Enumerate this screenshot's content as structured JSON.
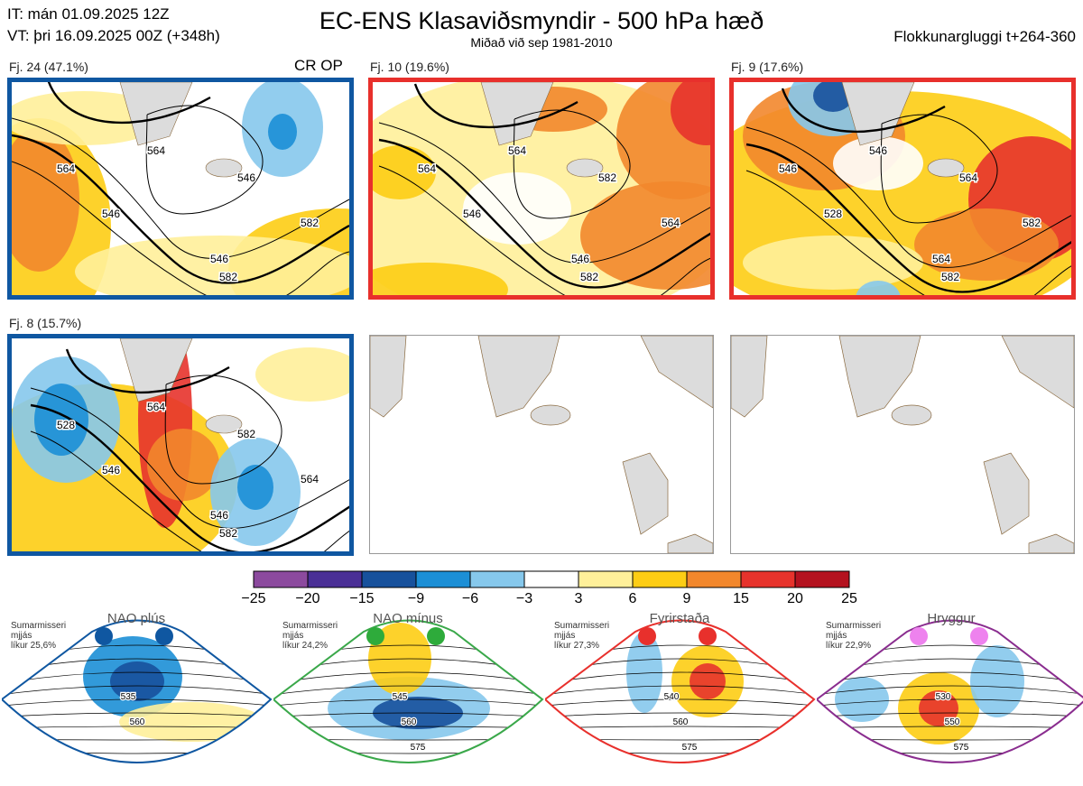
{
  "header": {
    "it": "IT: mán 01.09.2025 12Z",
    "vt": "VT: þri 16.09.2025 00Z  (+348h)",
    "title": "EC-ENS Klasaviðsmyndir - 500 hPa hæð",
    "subtitle": "Miðað við sep 1981-2010",
    "window": "Flokkunargluggi t+264-360"
  },
  "clusters": [
    {
      "label": "Fj. 24 (47.1%)",
      "border": "#0f57a1",
      "cr_op": "CR OP",
      "contours": [
        "546",
        "564",
        "546",
        "564",
        "546",
        "582",
        "582"
      ]
    },
    {
      "label": "Fj. 10 (19.6%)",
      "border": "#e8302c",
      "contours": [
        "546",
        "564",
        "546",
        "564",
        "582",
        "564",
        "582"
      ]
    },
    {
      "label": "Fj. 9 (17.6%)",
      "border": "#e8302c",
      "contours": [
        "528",
        "546",
        "564",
        "546",
        "564",
        "582",
        "582"
      ]
    },
    {
      "label": "Fj. 8 (15.7%)",
      "border": "#0f57a1",
      "contours": [
        "546",
        "528",
        "546",
        "564",
        "582",
        "564",
        "582"
      ]
    }
  ],
  "colorbar": {
    "ticks": [
      "−25",
      "−20",
      "−15",
      "−9",
      "−6",
      "−3",
      "3",
      "6",
      "9",
      "15",
      "20",
      "25"
    ],
    "colors": [
      "#8c4a9e",
      "#4a2f96",
      "#17519c",
      "#1c8fd6",
      "#86c8ec",
      "#ffffff",
      "#fff09a",
      "#fdcd14",
      "#f2872c",
      "#e7332c",
      "#b4121f"
    ]
  },
  "regimes": [
    {
      "name": "NAO plús",
      "season": "Sumarmisseri",
      "smoothing": "mjjás",
      "prob": "líkur 25,6%",
      "color": "#0f57a1",
      "dot": "#0f57a1",
      "contours": [
        "535",
        "560"
      ]
    },
    {
      "name": "NAO mínus",
      "season": "Sumarmisseri",
      "smoothing": "mjjás",
      "prob": "líkur 24,2%",
      "color": "#3aa84a",
      "dot": "#2eab3b",
      "contours": [
        "545",
        "560",
        "575"
      ]
    },
    {
      "name": "Fyrirstaða",
      "season": "Sumarmisseri",
      "smoothing": "mjjás",
      "prob": "líkur 27,3%",
      "color": "#e8302c",
      "dot": "#e8302c",
      "contours": [
        "540",
        "560",
        "575"
      ]
    },
    {
      "name": "Hryggur",
      "season": "Sumarmisseri",
      "smoothing": "mjjás",
      "prob": "líkur 22,9%",
      "color": "#8a2d8f",
      "dot": "#ee82ee",
      "contours": [
        "530",
        "550",
        "575"
      ]
    }
  ],
  "chart_data": {
    "type": "heatmap",
    "title": "EC-ENS Klasaviðsmyndir - 500 hPa hæð",
    "subtitle": "Miðað við sep 1981-2010",
    "series": [
      {
        "name": "Fj. 24",
        "values": [
          47.1
        ]
      },
      {
        "name": "Fj. 10",
        "values": [
          19.6
        ]
      },
      {
        "name": "Fj. 9",
        "values": [
          17.6
        ]
      },
      {
        "name": "Fj. 8",
        "values": [
          15.7
        ]
      }
    ],
    "colorbar_bounds": [
      -25,
      -20,
      -15,
      -9,
      -6,
      -3,
      3,
      6,
      9,
      15,
      20,
      25
    ],
    "regime_probabilities": {
      "NAO plús": 25.6,
      "NAO mínus": 24.2,
      "Fyrirstaða": 27.3,
      "Hryggur": 22.9
    }
  }
}
